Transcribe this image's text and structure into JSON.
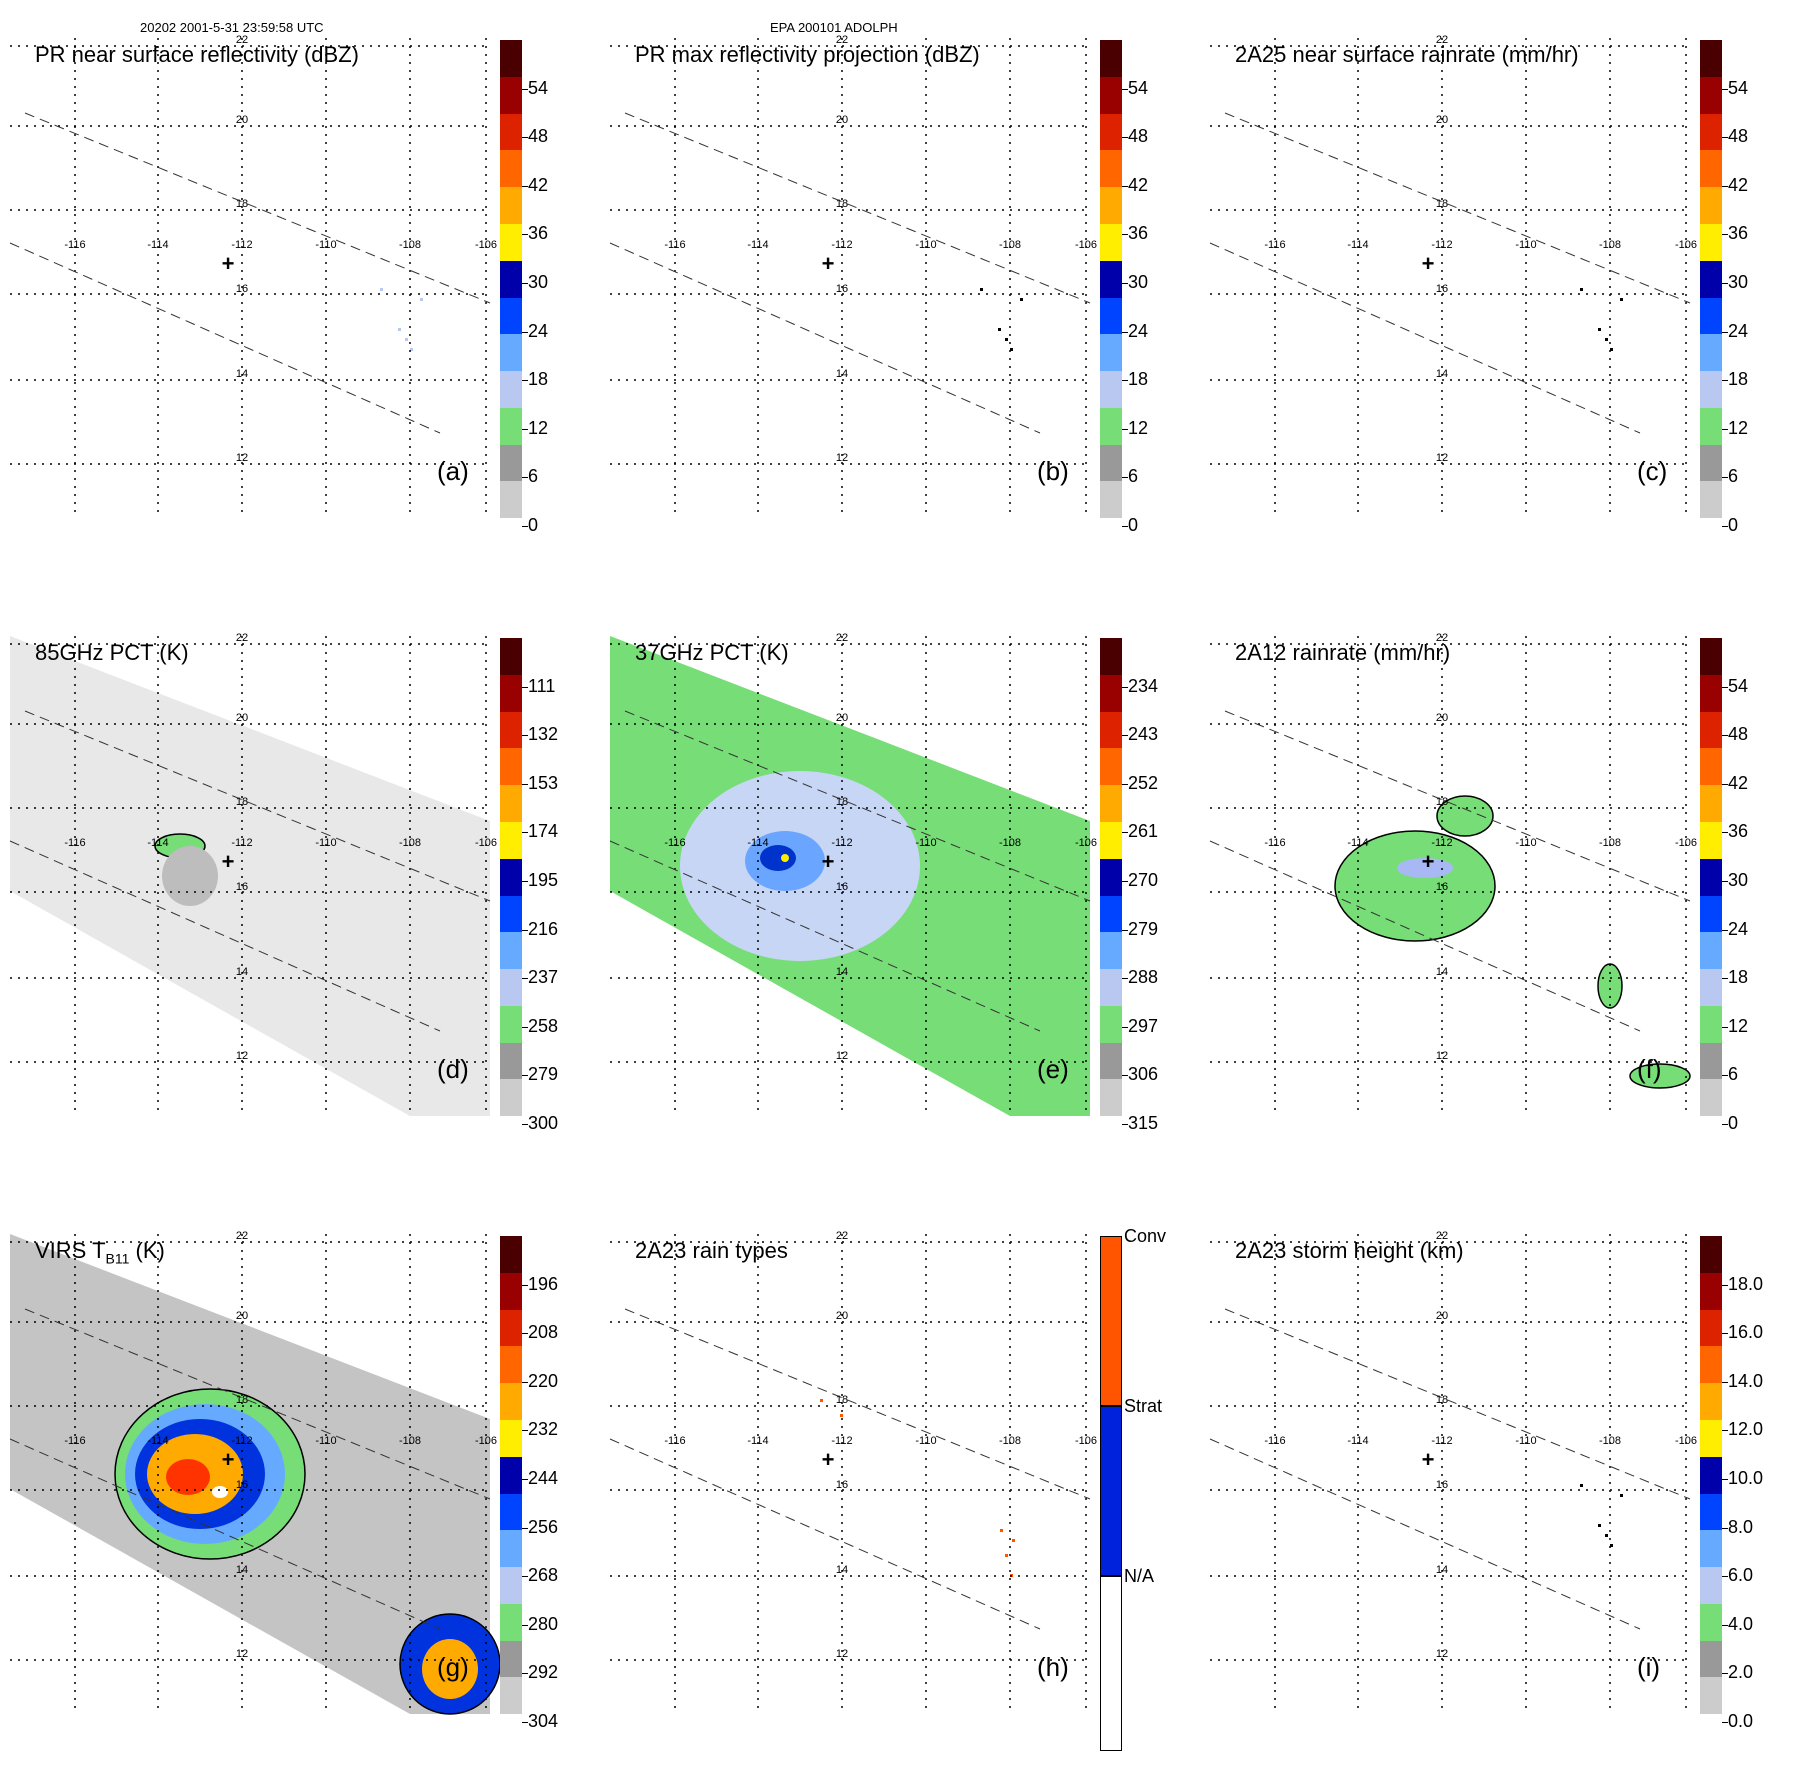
{
  "header": {
    "left": "20202 2001-5-31 23:59:58 UTC",
    "center": "EPA 200101 ADOLPH"
  },
  "map": {
    "lon_labels": [
      "-116",
      "-114",
      "-112",
      "-110",
      "-108",
      "-106"
    ],
    "lat_labels": [
      "22",
      "20",
      "18",
      "16",
      "14",
      "12"
    ],
    "center_marker": "+"
  },
  "panels": [
    {
      "title": "PR near surface reflectivity (dBZ)",
      "label": "(a)",
      "ticks": [
        "54",
        "48",
        "42",
        "36",
        "30",
        "24",
        "18",
        "12",
        "6",
        "0"
      ],
      "field": "pr"
    },
    {
      "title": "PR max reflectivity projection (dBZ)",
      "label": "(b)",
      "ticks": [
        "54",
        "48",
        "42",
        "36",
        "30",
        "24",
        "18",
        "12",
        "6",
        "0"
      ],
      "field": "pr"
    },
    {
      "title": "2A25 near surface rainrate (mm/hr)",
      "label": "(c)",
      "ticks": [
        "54",
        "48",
        "42",
        "36",
        "30",
        "24",
        "18",
        "12",
        "6",
        "0"
      ],
      "field": "rain"
    },
    {
      "title": "85GHz PCT (K)",
      "label": "(d)",
      "ticks": [
        "111",
        "132",
        "153",
        "174",
        "195",
        "216",
        "237",
        "258",
        "279",
        "300"
      ],
      "field": "pct85"
    },
    {
      "title": "37GHz PCT (K)",
      "label": "(e)",
      "ticks": [
        "234",
        "243",
        "252",
        "261",
        "270",
        "279",
        "288",
        "297",
        "306",
        "315"
      ],
      "field": "pct37"
    },
    {
      "title": "2A12 rainrate (mm/hr)",
      "label": "(f)",
      "ticks": [
        "54",
        "48",
        "42",
        "36",
        "30",
        "24",
        "18",
        "12",
        "6",
        "0"
      ],
      "field": "tmi"
    },
    {
      "title": "VIRS T",
      "title_sub": "B11",
      "title_tail": " (K)",
      "label": "(g)",
      "ticks": [
        "196",
        "208",
        "220",
        "232",
        "244",
        "256",
        "268",
        "280",
        "292",
        "304"
      ],
      "field": "virs"
    },
    {
      "title": "2A23 rain types",
      "label": "(h)",
      "ticks": [
        "Conv",
        "Strat",
        "N/A"
      ],
      "field": "types"
    },
    {
      "title": "2A23 storm height (km)",
      "label": "(i)",
      "ticks": [
        "18.0",
        "16.0",
        "14.0",
        "12.0",
        "10.0",
        "8.0",
        "6.0",
        "4.0",
        "2.0",
        "0.0"
      ],
      "field": "height"
    }
  ],
  "colors": {
    "scale": [
      "#ffffff",
      "#cccccc",
      "#999999",
      "#77dd77",
      "#b8c8f0",
      "#66aaff",
      "#0044ff",
      "#0000aa",
      "#ffee00",
      "#ffaa00",
      "#ff6600",
      "#dd2200",
      "#990000",
      "#4a0000"
    ],
    "green": "#77dd77",
    "light_blue": "#c8d6f5",
    "conv": "#ff5500",
    "strat": "#0022dd"
  }
}
